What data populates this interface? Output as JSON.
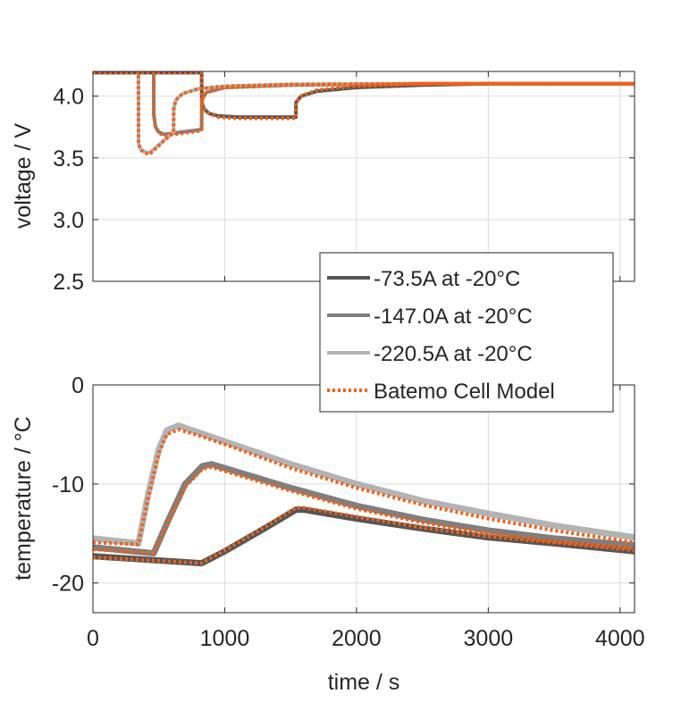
{
  "colors": {
    "dark": "#555555",
    "medium": "#7f7f7f",
    "light": "#b3b3b3",
    "model": "#ee6218"
  },
  "chart_data": [
    {
      "type": "line",
      "ylabel": "voltage / V",
      "xlabel": "",
      "xlim": [
        0,
        4110
      ],
      "ylim": [
        2.5,
        4.2
      ],
      "xticks": [
        0,
        1000,
        2000,
        3000,
        4000
      ],
      "yticks": [
        2.5,
        3.0,
        3.5,
        4.0
      ],
      "ytick_labels": [
        "2.5",
        "3.0",
        "3.5",
        "4.0"
      ],
      "grid": true,
      "series": [
        {
          "name": "-147.0A at -20°C",
          "style": "medium",
          "points": [
            [
              0,
              4.19
            ],
            [
              461,
              4.19
            ],
            [
              462,
              3.85
            ],
            [
              475,
              3.75
            ],
            [
              500,
              3.71
            ],
            [
              540,
              3.69
            ],
            [
              825,
              3.73
            ],
            [
              826,
              3.97
            ],
            [
              860,
              4.03
            ],
            [
              1000,
              4.07
            ],
            [
              1500,
              4.09
            ],
            [
              2500,
              4.1
            ],
            [
              4110,
              4.1
            ]
          ]
        },
        {
          "name": "-220.5A at -20°C",
          "style": "light",
          "points": [
            [
              0,
              4.19
            ],
            [
              345,
              4.19
            ],
            [
              346,
              3.62
            ],
            [
              360,
              3.57
            ],
            [
              390,
              3.55
            ],
            [
              430,
              3.54
            ],
            [
              612,
              3.71
            ],
            [
              613,
              3.9
            ],
            [
              630,
              3.97
            ],
            [
              680,
              4.02
            ],
            [
              800,
              4.06
            ],
            [
              1000,
              4.08
            ],
            [
              1500,
              4.095
            ],
            [
              2500,
              4.1
            ],
            [
              4110,
              4.1
            ]
          ]
        },
        {
          "name": "-73.5A at -20°C",
          "style": "dark",
          "points": [
            [
              0,
              4.19
            ],
            [
              825,
              4.19
            ],
            [
              826,
              3.96
            ],
            [
              840,
              3.9
            ],
            [
              880,
              3.86
            ],
            [
              950,
              3.84
            ],
            [
              1100,
              3.83
            ],
            [
              1540,
              3.83
            ],
            [
              1541,
              3.95
            ],
            [
              1580,
              4.0
            ],
            [
              1700,
              4.04
            ],
            [
              2000,
              4.07
            ],
            [
              2500,
              4.09
            ],
            [
              3000,
              4.1
            ],
            [
              4110,
              4.1
            ]
          ]
        },
        {
          "name": "Batemo Cell Model",
          "style": "model",
          "points": [
            [
              0,
              4.19
            ],
            [
              345,
              4.19
            ],
            [
              346,
              3.62
            ],
            [
              360,
              3.57
            ],
            [
              390,
              3.54
            ],
            [
              430,
              3.53
            ],
            [
              612,
              3.71
            ],
            [
              613,
              3.9
            ],
            [
              630,
              3.97
            ],
            [
              680,
              4.02
            ],
            [
              800,
              4.06
            ],
            [
              1000,
              4.08
            ],
            [
              1500,
              4.095
            ],
            [
              2500,
              4.1
            ],
            [
              4110,
              4.1
            ]
          ]
        },
        {
          "name": "Batemo Cell Model",
          "style": "model",
          "points": [
            [
              0,
              4.19
            ],
            [
              461,
              4.19
            ],
            [
              462,
              3.85
            ],
            [
              475,
              3.75
            ],
            [
              500,
              3.7
            ],
            [
              540,
              3.68
            ],
            [
              825,
              3.72
            ],
            [
              826,
              3.97
            ],
            [
              860,
              4.03
            ],
            [
              1000,
              4.07
            ],
            [
              1500,
              4.09
            ],
            [
              2500,
              4.1
            ],
            [
              4110,
              4.1
            ]
          ]
        },
        {
          "name": "Batemo Cell Model",
          "style": "model",
          "points": [
            [
              0,
              4.19
            ],
            [
              825,
              4.19
            ],
            [
              826,
              3.96
            ],
            [
              840,
              3.9
            ],
            [
              880,
              3.86
            ],
            [
              950,
              3.83
            ],
            [
              1100,
              3.82
            ],
            [
              1540,
              3.82
            ],
            [
              1541,
              3.95
            ],
            [
              1580,
              4.0
            ],
            [
              1700,
              4.05
            ],
            [
              2000,
              4.08
            ],
            [
              2500,
              4.1
            ],
            [
              4110,
              4.1
            ]
          ]
        }
      ]
    },
    {
      "type": "line",
      "ylabel": "temperature / °C",
      "xlabel": "time / s",
      "xlim": [
        0,
        4110
      ],
      "ylim": [
        -23,
        0
      ],
      "xticks": [
        0,
        1000,
        2000,
        3000,
        4000
      ],
      "xtick_labels": [
        "0",
        "1000",
        "2000",
        "3000",
        "4000"
      ],
      "yticks": [
        -20,
        -10,
        0
      ],
      "ytick_labels": [
        "-20",
        "-10",
        "0"
      ],
      "grid": true,
      "series": [
        {
          "name": "-220.5A at -20°C",
          "style": "light",
          "points": [
            [
              0,
              -15.5
            ],
            [
              345,
              -16
            ],
            [
              420,
              -11
            ],
            [
              500,
              -6.5
            ],
            [
              560,
              -4.6
            ],
            [
              650,
              -4.1
            ],
            [
              800,
              -4.8
            ],
            [
              1000,
              -5.7
            ],
            [
              1500,
              -8
            ],
            [
              2000,
              -10
            ],
            [
              2500,
              -11.7
            ],
            [
              3000,
              -13
            ],
            [
              3500,
              -14.2
            ],
            [
              4110,
              -15.4
            ]
          ]
        },
        {
          "name": "-147.0A at -20°C",
          "style": "medium",
          "points": [
            [
              0,
              -16.4
            ],
            [
              461,
              -17
            ],
            [
              560,
              -14
            ],
            [
              700,
              -10
            ],
            [
              830,
              -8.2
            ],
            [
              900,
              -8.0
            ],
            [
              1000,
              -8.4
            ],
            [
              1500,
              -10.4
            ],
            [
              2000,
              -12.2
            ],
            [
              2500,
              -13.6
            ],
            [
              3000,
              -14.7
            ],
            [
              3500,
              -15.5
            ],
            [
              4110,
              -16.2
            ]
          ]
        },
        {
          "name": "-73.5A at -20°C",
          "style": "dark",
          "points": [
            [
              0,
              -17.3
            ],
            [
              825,
              -18
            ],
            [
              1000,
              -16.8
            ],
            [
              1300,
              -14.5
            ],
            [
              1540,
              -12.6
            ],
            [
              1600,
              -12.6
            ],
            [
              2000,
              -13.5
            ],
            [
              2500,
              -14.5
            ],
            [
              3000,
              -15.4
            ],
            [
              3500,
              -16
            ],
            [
              4110,
              -16.8
            ]
          ]
        },
        {
          "name": "Batemo Cell Model",
          "style": "model",
          "points": [
            [
              0,
              -15.9
            ],
            [
              345,
              -16.1
            ],
            [
              420,
              -11.3
            ],
            [
              500,
              -6.9
            ],
            [
              560,
              -5
            ],
            [
              650,
              -4.5
            ],
            [
              800,
              -5.1
            ],
            [
              1000,
              -6
            ],
            [
              1500,
              -8.4
            ],
            [
              2000,
              -10.4
            ],
            [
              2500,
              -12.1
            ],
            [
              3000,
              -13.5
            ],
            [
              3500,
              -14.7
            ],
            [
              4110,
              -15.9
            ]
          ]
        },
        {
          "name": "Batemo Cell Model",
          "style": "model",
          "points": [
            [
              0,
              -16.6
            ],
            [
              461,
              -17
            ],
            [
              560,
              -14.2
            ],
            [
              700,
              -10.3
            ],
            [
              830,
              -8.5
            ],
            [
              900,
              -8.3
            ],
            [
              1000,
              -8.7
            ],
            [
              1500,
              -10.7
            ],
            [
              2000,
              -12.5
            ],
            [
              2500,
              -13.9
            ],
            [
              3000,
              -15
            ],
            [
              3500,
              -15.8
            ],
            [
              4110,
              -16.5
            ]
          ]
        },
        {
          "name": "Batemo Cell Model",
          "style": "model",
          "points": [
            [
              0,
              -17.4
            ],
            [
              825,
              -18
            ],
            [
              1000,
              -16.7
            ],
            [
              1300,
              -14.4
            ],
            [
              1540,
              -12.4
            ],
            [
              1600,
              -12.4
            ],
            [
              2000,
              -13.3
            ],
            [
              2500,
              -14.4
            ],
            [
              3000,
              -15.3
            ],
            [
              3500,
              -15.9
            ],
            [
              4110,
              -16.7
            ]
          ]
        }
      ]
    }
  ],
  "legend": {
    "placement": "right-center",
    "entries": [
      {
        "label": "-73.5A at -20°C",
        "style": "dark"
      },
      {
        "label": "-147.0A at -20°C",
        "style": "medium"
      },
      {
        "label": "-220.5A at -20°C",
        "style": "light"
      },
      {
        "label": "Batemo Cell Model",
        "style": "model"
      }
    ]
  }
}
